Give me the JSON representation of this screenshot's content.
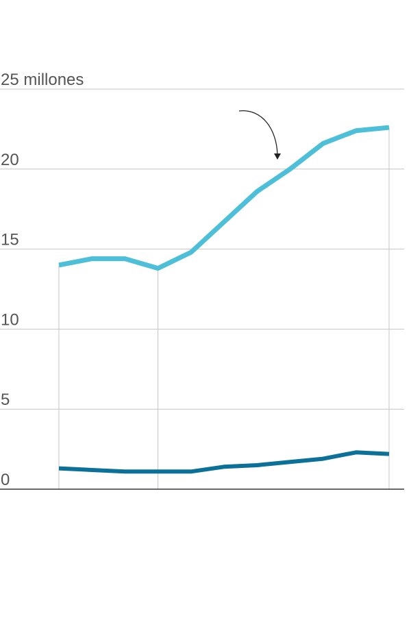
{
  "chart_data": {
    "type": "line",
    "title": "",
    "xlabel": "",
    "ylabel": "",
    "ylim": [
      0,
      25
    ],
    "xlim": [
      0,
      10
    ],
    "x": [
      0,
      1,
      2,
      3,
      4,
      5,
      6,
      7,
      8,
      9,
      10
    ],
    "yticks": [
      0,
      5,
      10,
      15,
      20,
      25
    ],
    "ytick_labels": [
      "0",
      "5",
      "10",
      "15",
      "20",
      "25 millones"
    ],
    "x_guides": [
      0,
      3,
      10
    ],
    "grid": true,
    "legend": "none",
    "series": [
      {
        "key": "upper",
        "color": "#4dbfd9",
        "values": [
          14.0,
          14.4,
          14.4,
          13.8,
          14.8,
          16.7,
          18.6,
          20.0,
          21.6,
          22.4,
          22.6
        ]
      },
      {
        "key": "lower",
        "color": "#0c7199",
        "values": [
          1.3,
          1.2,
          1.1,
          1.1,
          1.1,
          1.4,
          1.5,
          1.7,
          1.9,
          2.3,
          2.2
        ]
      }
    ],
    "annotations": [
      {
        "type": "curved-arrow",
        "text": ""
      }
    ]
  },
  "colors": {
    "grid": "#c4c4c4",
    "axis": "#111111",
    "tick_text": "#555555",
    "arrow": "#222222"
  }
}
